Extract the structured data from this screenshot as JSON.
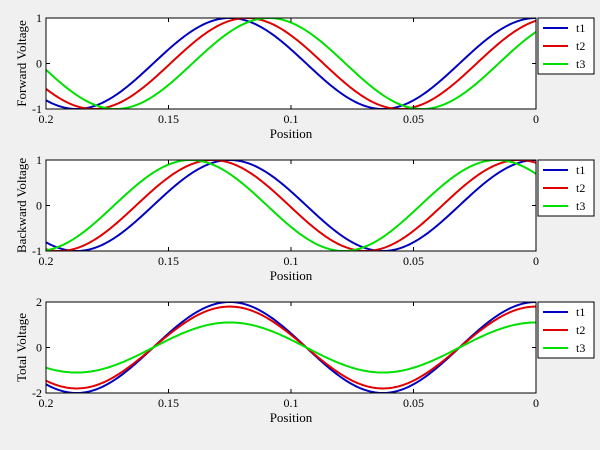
{
  "figure": {
    "background": "#f0f0f0",
    "axes_background": "#ffffff"
  },
  "series_colors": [
    "#0000c0",
    "#e00000",
    "#00e000"
  ],
  "chart_data": [
    {
      "type": "line",
      "title": "",
      "xlabel": "Position",
      "ylabel": "Forward Voltage",
      "xlim": [
        0.2,
        0
      ],
      "x_reversed": true,
      "ylim": [
        -1,
        1
      ],
      "xticks": [
        0.2,
        0.15,
        0.1,
        0.05,
        0
      ],
      "xtick_labels": [
        "0.2",
        "0.15",
        "0.1",
        "0.05",
        "0"
      ],
      "yticks": [
        -1,
        0,
        1
      ],
      "ytick_labels": [
        "-1",
        "0",
        "1"
      ],
      "grid": false,
      "legend": "right",
      "series": [
        {
          "name": "t1",
          "color": "#0000c0",
          "function": "amplitude*cos(2*pi*(x - x_peak)/wavelength)",
          "amplitude": 1.0,
          "wavelength": 0.125,
          "x_peak": 0.125
        },
        {
          "name": "t2",
          "color": "#e00000",
          "function": "amplitude*cos(2*pi*(x - x_peak)/wavelength)",
          "amplitude": 1.0,
          "wavelength": 0.125,
          "x_peak": 0.118
        },
        {
          "name": "t3",
          "color": "#00e000",
          "function": "amplitude*cos(2*pi*(x - x_peak)/wavelength)",
          "amplitude": 1.0,
          "wavelength": 0.125,
          "x_peak": 0.109
        }
      ]
    },
    {
      "type": "line",
      "title": "",
      "xlabel": "Position",
      "ylabel": "Backward Voltage",
      "xlim": [
        0.2,
        0
      ],
      "x_reversed": true,
      "ylim": [
        -1,
        1
      ],
      "xticks": [
        0.2,
        0.15,
        0.1,
        0.05,
        0
      ],
      "xtick_labels": [
        "0.2",
        "0.15",
        "0.1",
        "0.05",
        "0"
      ],
      "yticks": [
        -1,
        0,
        1
      ],
      "ytick_labels": [
        "-1",
        "0",
        "1"
      ],
      "grid": false,
      "legend": "right",
      "series": [
        {
          "name": "t1",
          "color": "#0000c0",
          "function": "amplitude*cos(2*pi*(x - x_peak)/wavelength)",
          "amplitude": 1.0,
          "wavelength": 0.125,
          "x_peak": 0.125
        },
        {
          "name": "t2",
          "color": "#e00000",
          "function": "amplitude*cos(2*pi*(x - x_peak)/wavelength)",
          "amplitude": 1.0,
          "wavelength": 0.125,
          "x_peak": 0.132
        },
        {
          "name": "t3",
          "color": "#00e000",
          "function": "amplitude*cos(2*pi*(x - x_peak)/wavelength)",
          "amplitude": 1.0,
          "wavelength": 0.125,
          "x_peak": 0.141
        }
      ]
    },
    {
      "type": "line",
      "title": "",
      "xlabel": "Position",
      "ylabel": "Total Voltage",
      "xlim": [
        0.2,
        0
      ],
      "x_reversed": true,
      "ylim": [
        -2,
        2
      ],
      "xticks": [
        0.2,
        0.15,
        0.1,
        0.05,
        0
      ],
      "xtick_labels": [
        "0.2",
        "0.15",
        "0.1",
        "0.05",
        "0"
      ],
      "yticks": [
        -2,
        0,
        2
      ],
      "ytick_labels": [
        "-2",
        "0",
        "2"
      ],
      "grid": false,
      "legend": "right",
      "series": [
        {
          "name": "t1",
          "color": "#0000c0",
          "function": "amplitude*cos(2*pi*(x - x_peak)/wavelength)",
          "amplitude": 2.0,
          "wavelength": 0.125,
          "x_peak": 0.125
        },
        {
          "name": "t2",
          "color": "#e00000",
          "function": "amplitude*cos(2*pi*(x - x_peak)/wavelength)",
          "amplitude": 1.8,
          "wavelength": 0.125,
          "x_peak": 0.125
        },
        {
          "name": "t3",
          "color": "#00e000",
          "function": "amplitude*cos(2*pi*(x - x_peak)/wavelength)",
          "amplitude": 1.1,
          "wavelength": 0.125,
          "x_peak": 0.125
        }
      ]
    }
  ]
}
